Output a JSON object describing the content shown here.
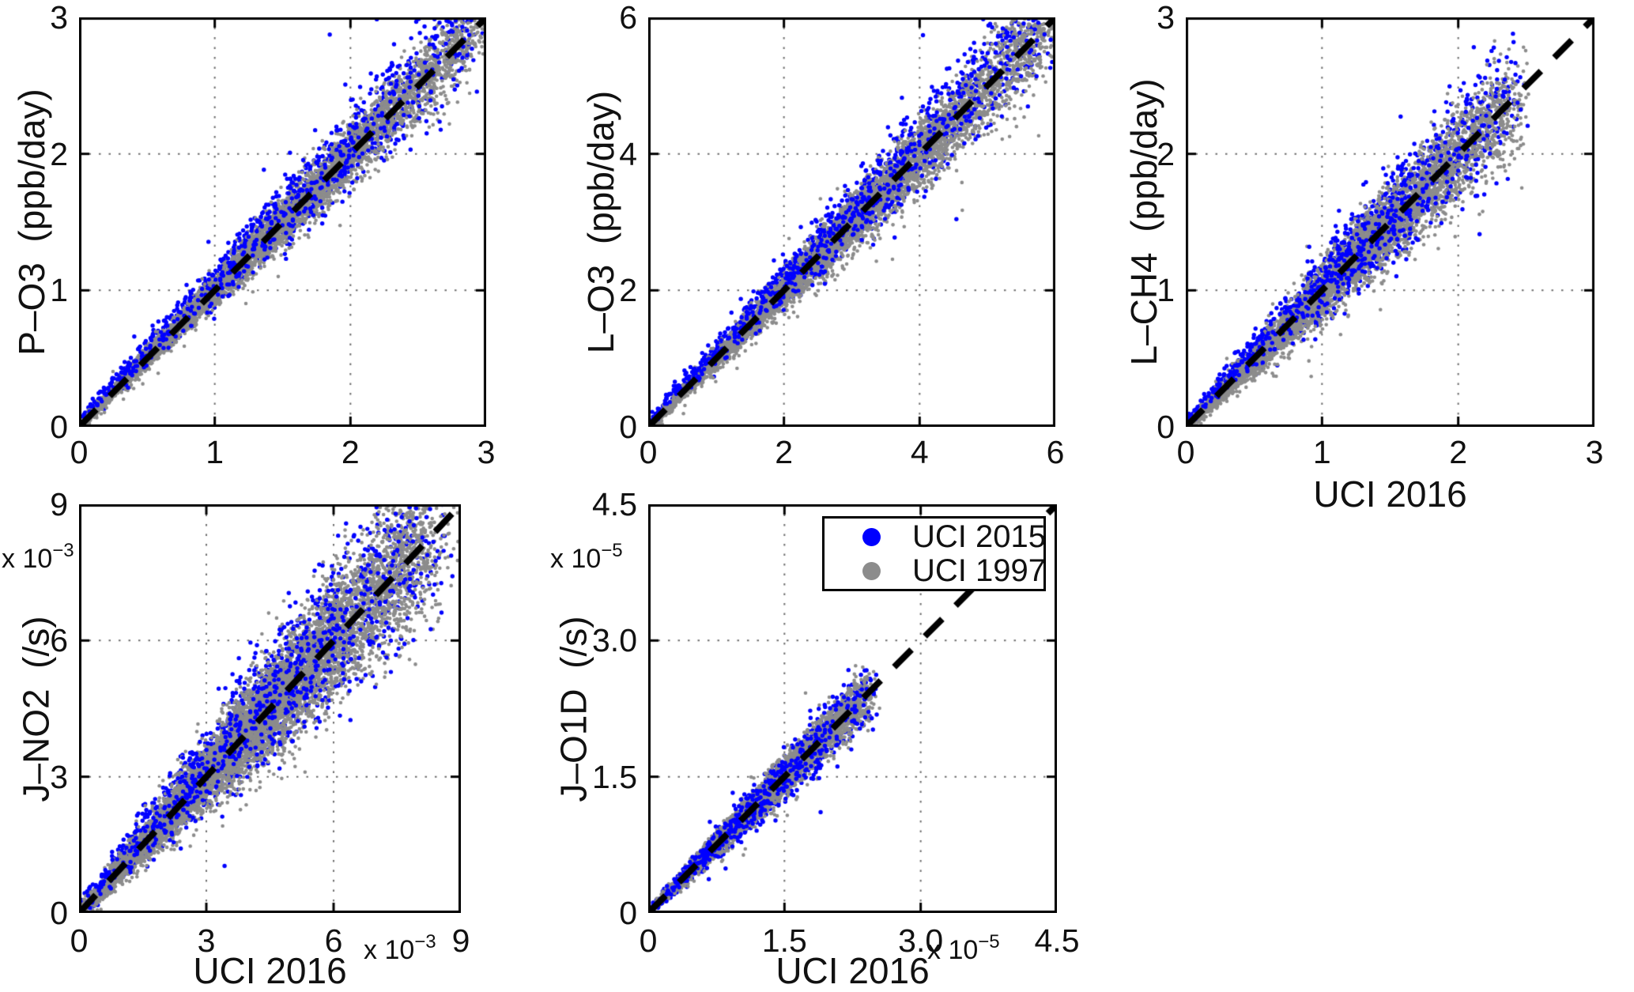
{
  "figure": {
    "background": "#ffffff",
    "description": "Five MATLAB-style scatter comparison panels of photochemical rates: UCI 2016 model (x-axis) versus UCI 2015 (blue) and UCI 1997 (gray) model versions, each with a dashed 1:1 reference line and dotted grid.",
    "colors": {
      "axis": "#000000",
      "grid": "#6e6e6e",
      "ref_line": "#000000"
    }
  },
  "legend": {
    "items": [
      {
        "label": "UCI 2015",
        "color": "#0000ff"
      },
      {
        "label": "UCI 1997",
        "color": "#8c8c8c"
      }
    ]
  },
  "chart_data": {
    "type": "scatter",
    "x_axis_quantity": "UCI 2016",
    "grid": "dotted",
    "ref_line": {
      "style": "dashed",
      "relation": "y = x (1:1 line)"
    },
    "charts": [
      {
        "id": "p-o3",
        "ylabel": "P–O3  (ppb/day)",
        "xlabel": "",
        "axis_min": 0,
        "axis_max": 3,
        "ticks": [
          0,
          1,
          2,
          3
        ],
        "tick_labels": [
          "0",
          "1",
          "2",
          "3"
        ],
        "multiplier": null,
        "data_max": 3.0,
        "seed": 101,
        "series": [
          {
            "name": "UCI 2015",
            "color": "#0000ff",
            "marker_px": 2.7,
            "n": 1400,
            "relation": "y ≈ x",
            "sigma0": 0.022,
            "sigmaK": 0.058,
            "bias": 0.05,
            "outlier_frac": 0.025,
            "outlier_mult": 3.2,
            "tail_frac": 0,
            "tail_mag": 0
          },
          {
            "name": "UCI 1997",
            "color": "#8c8c8c",
            "marker_px": 2.3,
            "n": 4800,
            "relation": "y ≈ x",
            "sigma0": 0.018,
            "sigmaK": 0.042,
            "bias": 0.0,
            "outlier_frac": 0.015,
            "outlier_mult": 2.5,
            "tail_frac": 0,
            "tail_mag": 0
          }
        ]
      },
      {
        "id": "l-o3",
        "ylabel": "L–O3  (ppb/day)",
        "xlabel": "",
        "axis_min": 0,
        "axis_max": 6,
        "ticks": [
          0,
          2,
          4,
          6
        ],
        "tick_labels": [
          "0",
          "2",
          "4",
          "6"
        ],
        "multiplier": null,
        "data_max": 6.0,
        "seed": 202,
        "series": [
          {
            "name": "UCI 2015",
            "color": "#0000ff",
            "marker_px": 2.7,
            "n": 1500,
            "relation": "y ≈ x",
            "sigma0": 0.04,
            "sigmaK": 0.062,
            "bias": 0.09,
            "outlier_frac": 0.02,
            "outlier_mult": 2.8,
            "tail_frac": 0,
            "tail_mag": 0
          },
          {
            "name": "UCI 1997",
            "color": "#8c8c8c",
            "marker_px": 2.3,
            "n": 5200,
            "relation": "y ≈ x",
            "sigma0": 0.03,
            "sigmaK": 0.048,
            "bias": -0.02,
            "outlier_frac": 0.012,
            "outlier_mult": 2.4,
            "tail_frac": 0.04,
            "tail_mag": 0.35
          }
        ]
      },
      {
        "id": "l-ch4",
        "ylabel": "L–CH4  (ppb/day)",
        "xlabel": "UCI 2016",
        "axis_min": 0,
        "axis_max": 3,
        "ticks": [
          0,
          1,
          2,
          3
        ],
        "tick_labels": [
          "0",
          "1",
          "2",
          "3"
        ],
        "multiplier": null,
        "data_max": 2.42,
        "seed": 303,
        "series": [
          {
            "name": "UCI 2015",
            "color": "#0000ff",
            "marker_px": 2.7,
            "n": 1500,
            "relation": "y ≈ x",
            "sigma0": 0.02,
            "sigmaK": 0.085,
            "bias": 0.04,
            "outlier_frac": 0.015,
            "outlier_mult": 2.4,
            "tail_frac": 0,
            "tail_mag": 0
          },
          {
            "name": "UCI 1997",
            "color": "#8c8c8c",
            "marker_px": 2.3,
            "n": 5200,
            "relation": "y ≈ x",
            "sigma0": 0.018,
            "sigmaK": 0.068,
            "bias": -0.01,
            "outlier_frac": 0.012,
            "outlier_mult": 2.2,
            "tail_frac": 0.05,
            "tail_mag": 0.18
          }
        ]
      },
      {
        "id": "j-no2",
        "ylabel": "J–NO2  (/s)",
        "xlabel": "UCI 2016",
        "axis_min": 0,
        "axis_max": 9,
        "ticks": [
          0,
          3,
          6,
          9
        ],
        "tick_labels": [
          "0",
          "3",
          "6",
          "9"
        ],
        "multiplier": {
          "base": "x 10",
          "exp": "−3",
          "applies": "both axes"
        },
        "data_max": 8.45,
        "seed": 404,
        "series": [
          {
            "name": "UCI 2015",
            "color": "#0000ff",
            "marker_px": 2.7,
            "n": 1700,
            "relation": "y ≈ x",
            "sigma0": 0.09,
            "sigmaK": 0.115,
            "bias": 0.12,
            "outlier_frac": 0.015,
            "outlier_mult": 2.2,
            "tail_frac": 0,
            "tail_mag": 0
          },
          {
            "name": "UCI 1997",
            "color": "#8c8c8c",
            "marker_px": 2.3,
            "n": 7000,
            "relation": "y ≈ x",
            "sigma0": 0.07,
            "sigmaK": 0.095,
            "bias": 0.0,
            "outlier_frac": 0.012,
            "outlier_mult": 2.0,
            "tail_frac": 0,
            "tail_mag": 0
          }
        ]
      },
      {
        "id": "j-o1d",
        "ylabel": "J–O1D  (/s)",
        "xlabel": "UCI 2016",
        "axis_min": 0,
        "axis_max": 4.5,
        "ticks": [
          0,
          1.5,
          3,
          4.5
        ],
        "tick_labels": [
          "0",
          "1.5",
          "3.0",
          "4.5"
        ],
        "multiplier": {
          "base": "x 10",
          "exp": "−5",
          "applies": "both axes"
        },
        "data_max": 2.45,
        "seed": 505,
        "series": [
          {
            "name": "UCI 2015",
            "color": "#0000ff",
            "marker_px": 2.7,
            "n": 1200,
            "relation": "y ≈ x",
            "sigma0": 0.022,
            "sigmaK": 0.062,
            "bias": 0.0,
            "outlier_frac": 0.02,
            "outlier_mult": 2.4,
            "tail_frac": 0,
            "tail_mag": 0
          },
          {
            "name": "UCI 1997",
            "color": "#8c8c8c",
            "marker_px": 2.3,
            "n": 4600,
            "relation": "y ≈ x",
            "sigma0": 0.018,
            "sigmaK": 0.05,
            "bias": 0.0,
            "outlier_frac": 0.015,
            "outlier_mult": 2.2,
            "tail_frac": 0.03,
            "tail_mag": 0.12
          }
        ]
      }
    ]
  }
}
